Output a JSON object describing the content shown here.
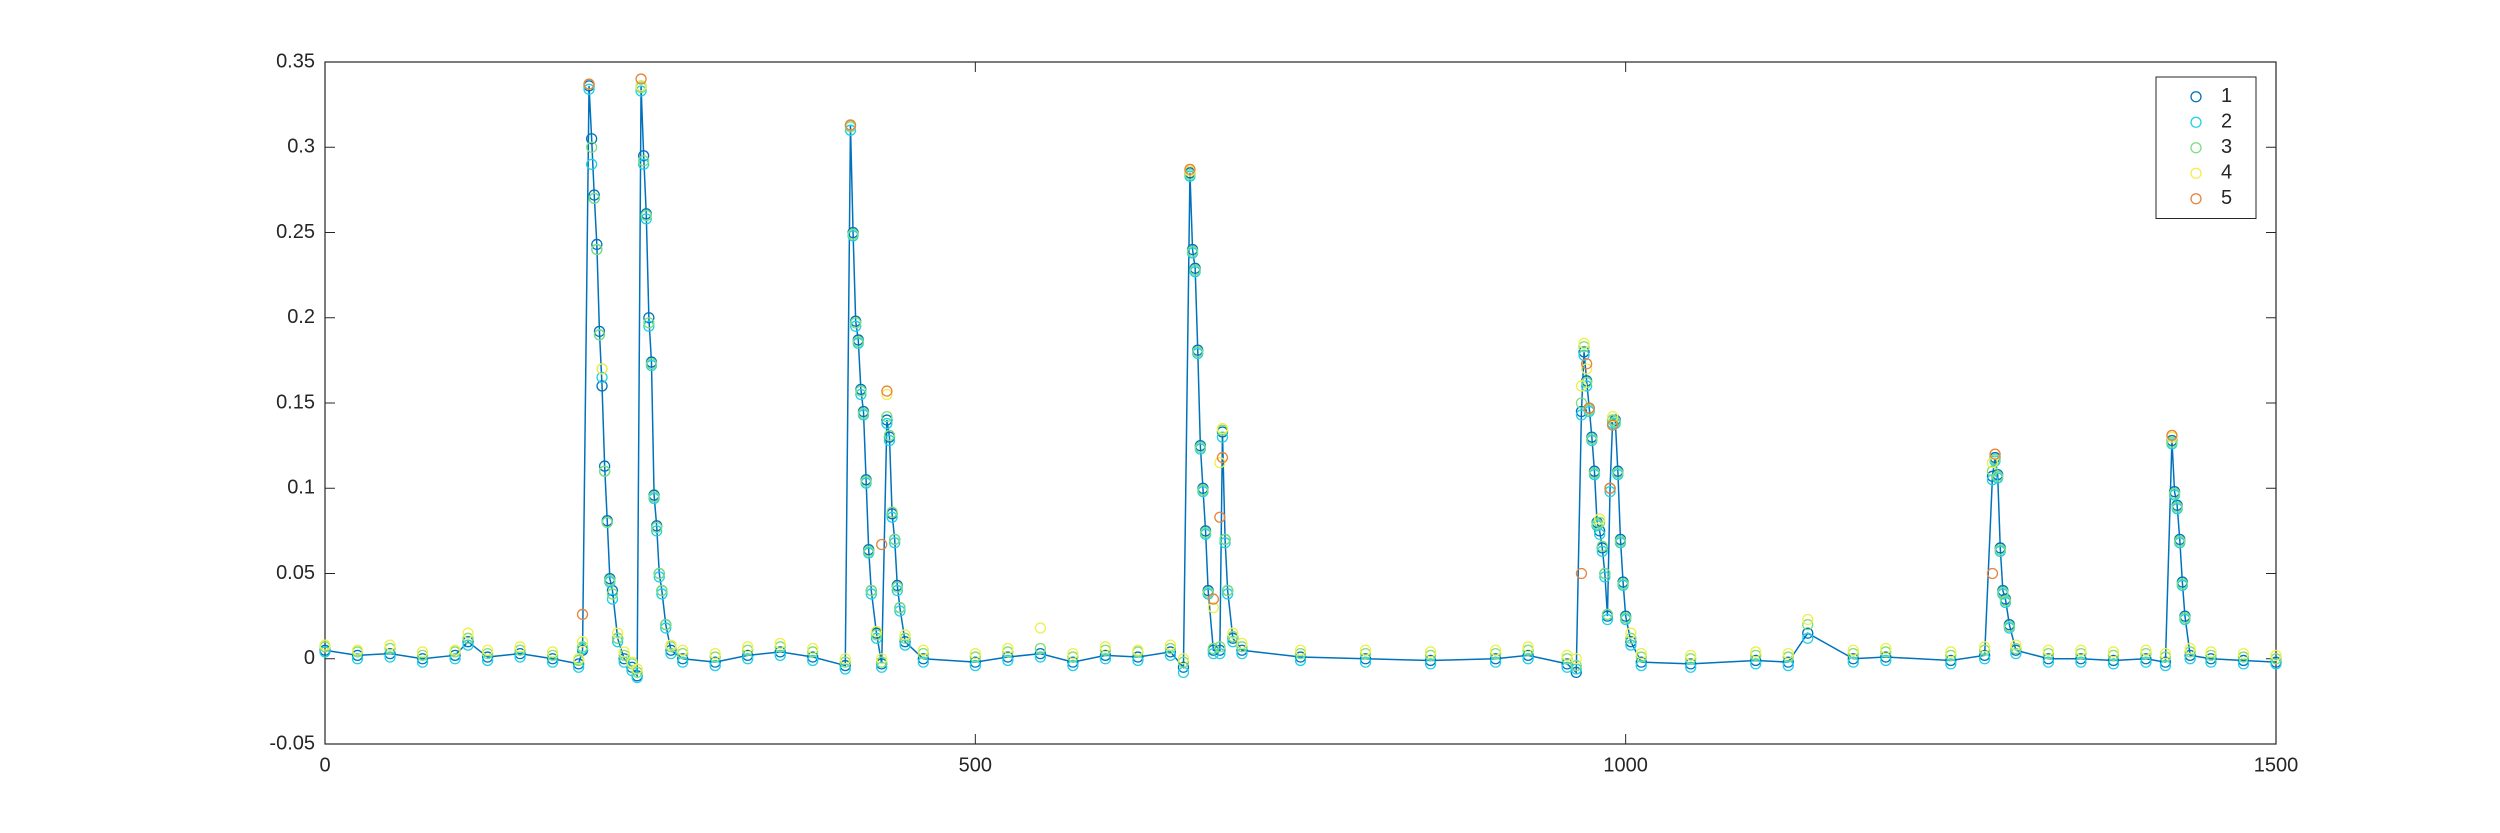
{
  "chart_data": {
    "type": "scatter",
    "x": [
      0,
      25,
      50,
      75,
      100,
      110,
      125,
      150,
      175,
      195,
      198,
      203,
      205,
      207,
      209,
      211,
      213,
      215,
      217,
      219,
      221,
      225,
      230,
      236,
      240,
      243,
      245,
      247,
      249,
      251,
      253,
      255,
      257,
      259,
      262,
      266,
      275,
      300,
      325,
      350,
      375,
      400,
      404,
      406,
      408,
      410,
      412,
      414,
      416,
      418,
      420,
      424,
      428,
      432,
      434,
      436,
      438,
      440,
      442,
      446,
      460,
      500,
      525,
      550,
      575,
      600,
      625,
      650,
      660,
      665,
      667,
      669,
      671,
      673,
      675,
      677,
      679,
      683,
      688,
      690,
      692,
      694,
      698,
      705,
      750,
      800,
      850,
      900,
      925,
      955,
      962,
      966,
      968,
      970,
      972,
      974,
      976,
      978,
      980,
      982,
      984,
      986,
      988,
      990,
      992,
      994,
      996,
      998,
      1000,
      1004,
      1012,
      1050,
      1100,
      1125,
      1140,
      1175,
      1200,
      1250,
      1276,
      1282,
      1284,
      1286,
      1288,
      1290,
      1292,
      1295,
      1300,
      1325,
      1350,
      1375,
      1400,
      1415,
      1420,
      1422,
      1424,
      1426,
      1428,
      1430,
      1434,
      1450,
      1475,
      1500
    ],
    "series": [
      {
        "name": "1",
        "color": "#0072bd",
        "line": true,
        "values": [
          0.005,
          0.002,
          0.003,
          0.0,
          0.002,
          0.01,
          0.001,
          0.003,
          0.0,
          -0.003,
          0.005,
          0.336,
          0.305,
          0.272,
          0.243,
          0.192,
          0.16,
          0.113,
          0.081,
          0.047,
          0.04,
          0.012,
          0.0,
          -0.005,
          -0.01,
          0.336,
          0.295,
          0.261,
          0.2,
          0.174,
          0.096,
          0.078,
          0.05,
          0.04,
          0.02,
          0.005,
          0.0,
          -0.002,
          0.002,
          0.004,
          0.001,
          -0.004,
          0.313,
          0.25,
          0.198,
          0.187,
          0.158,
          0.145,
          0.105,
          0.064,
          0.04,
          0.015,
          -0.003,
          0.14,
          0.13,
          0.085,
          0.07,
          0.043,
          0.03,
          0.01,
          0.0,
          -0.002,
          0.001,
          0.003,
          -0.002,
          0.002,
          0.001,
          0.004,
          -0.005,
          0.285,
          0.24,
          0.229,
          0.181,
          0.125,
          0.1,
          0.075,
          0.04,
          0.005,
          0.005,
          0.133,
          0.07,
          0.04,
          0.012,
          0.005,
          0.001,
          0.0,
          -0.001,
          0.0,
          0.002,
          -0.003,
          -0.008,
          0.145,
          0.18,
          0.163,
          0.147,
          0.13,
          0.11,
          0.08,
          0.075,
          0.065,
          0.05,
          0.025,
          0.1,
          0.14,
          0.14,
          0.11,
          0.07,
          0.045,
          0.025,
          0.01,
          -0.002,
          -0.003,
          -0.001,
          -0.002,
          0.015,
          0.0,
          0.001,
          -0.001,
          0.002,
          0.107,
          0.118,
          0.108,
          0.065,
          0.04,
          0.035,
          0.02,
          0.005,
          0.0,
          0.0,
          -0.001,
          0.0,
          -0.002,
          0.128,
          0.098,
          0.09,
          0.07,
          0.045,
          0.025,
          0.002,
          0.0,
          -0.001,
          -0.002
        ]
      },
      {
        "name": "2",
        "color": "#1fd0e6",
        "line": false,
        "values": [
          0.004,
          0.0,
          0.001,
          -0.002,
          0.0,
          0.008,
          -0.001,
          0.001,
          -0.002,
          -0.005,
          0.006,
          0.334,
          0.29,
          0.27,
          0.24,
          0.19,
          0.165,
          0.11,
          0.08,
          0.045,
          0.035,
          0.01,
          -0.002,
          -0.007,
          -0.011,
          0.333,
          0.29,
          0.258,
          0.195,
          0.172,
          0.094,
          0.075,
          0.048,
          0.038,
          0.018,
          0.003,
          -0.002,
          -0.004,
          0.0,
          0.002,
          -0.001,
          -0.006,
          0.31,
          0.248,
          0.195,
          0.185,
          0.155,
          0.143,
          0.103,
          0.062,
          0.038,
          0.012,
          -0.005,
          0.138,
          0.128,
          0.083,
          0.068,
          0.04,
          0.028,
          0.008,
          -0.002,
          -0.004,
          -0.001,
          0.001,
          -0.004,
          0.0,
          -0.001,
          0.002,
          -0.008,
          0.283,
          0.238,
          0.227,
          0.179,
          0.123,
          0.098,
          0.073,
          0.038,
          0.003,
          0.003,
          0.13,
          0.068,
          0.038,
          0.01,
          0.003,
          -0.001,
          -0.002,
          -0.003,
          -0.002,
          0.0,
          -0.005,
          -0.006,
          0.143,
          0.178,
          0.16,
          0.145,
          0.128,
          0.108,
          0.078,
          0.073,
          0.063,
          0.048,
          0.023,
          0.098,
          0.138,
          0.138,
          0.108,
          0.068,
          0.043,
          0.023,
          0.008,
          -0.004,
          -0.005,
          -0.003,
          -0.004,
          0.012,
          -0.002,
          -0.001,
          -0.003,
          0.0,
          0.105,
          0.116,
          0.106,
          0.063,
          0.038,
          0.033,
          0.018,
          0.003,
          -0.002,
          -0.002,
          -0.003,
          -0.002,
          -0.004,
          0.126,
          0.096,
          0.088,
          0.068,
          0.043,
          0.023,
          0.0,
          -0.002,
          -0.003,
          -0.003
        ]
      },
      {
        "name": "3",
        "color": "#7ddf7a",
        "line": false,
        "values": [
          0.007,
          0.004,
          0.006,
          0.002,
          0.004,
          0.012,
          0.003,
          0.005,
          0.002,
          -0.001,
          0.007,
          0.337,
          0.3,
          0.27,
          0.24,
          0.19,
          0.17,
          0.11,
          0.08,
          0.046,
          0.038,
          0.012,
          0.002,
          -0.003,
          -0.008,
          0.335,
          0.292,
          0.26,
          0.197,
          0.173,
          0.095,
          0.077,
          0.05,
          0.04,
          0.02,
          0.007,
          0.003,
          0.001,
          0.005,
          0.007,
          0.004,
          -0.002,
          0.312,
          0.249,
          0.197,
          0.186,
          0.157,
          0.144,
          0.104,
          0.063,
          0.04,
          0.014,
          -0.002,
          0.142,
          0.131,
          0.086,
          0.07,
          0.042,
          0.03,
          0.012,
          0.003,
          0.001,
          0.004,
          0.006,
          0.001,
          0.005,
          0.004,
          0.006,
          -0.002,
          0.284,
          0.239,
          0.228,
          0.18,
          0.124,
          0.099,
          0.074,
          0.039,
          0.006,
          0.007,
          0.134,
          0.07,
          0.04,
          0.013,
          0.007,
          0.003,
          0.003,
          0.002,
          0.003,
          0.005,
          0.0,
          -0.004,
          0.15,
          0.183,
          0.162,
          0.146,
          0.129,
          0.109,
          0.079,
          0.08,
          0.066,
          0.05,
          0.026,
          0.1,
          0.14,
          0.139,
          0.109,
          0.069,
          0.044,
          0.024,
          0.012,
          0.001,
          0.0,
          0.002,
          0.001,
          0.02,
          0.003,
          0.004,
          0.002,
          0.005,
          0.11,
          0.117,
          0.107,
          0.064,
          0.039,
          0.034,
          0.019,
          0.006,
          0.003,
          0.003,
          0.002,
          0.003,
          0.001,
          0.127,
          0.097,
          0.089,
          0.069,
          0.044,
          0.024,
          0.004,
          0.002,
          0.001,
          0.0
        ]
      },
      {
        "name": "4",
        "color": "#f0ef4a",
        "line": false,
        "values": [
          0.008,
          0.005,
          0.008,
          0.004,
          0.005,
          0.015,
          0.005,
          0.007,
          0.004,
          0.0,
          0.01,
          0.337,
          null,
          null,
          null,
          null,
          0.17,
          null,
          null,
          null,
          null,
          0.015,
          0.004,
          -0.002,
          -0.006,
          0.336,
          null,
          null,
          null,
          null,
          null,
          null,
          null,
          null,
          null,
          0.008,
          0.005,
          0.003,
          0.007,
          0.009,
          0.006,
          0.0,
          0.313,
          null,
          null,
          null,
          null,
          null,
          null,
          null,
          null,
          0.016,
          0.0,
          0.155,
          null,
          null,
          null,
          null,
          null,
          0.014,
          0.005,
          0.003,
          0.006,
          0.018,
          0.003,
          0.007,
          0.005,
          0.008,
          0.0,
          0.286,
          null,
          null,
          null,
          null,
          null,
          null,
          null,
          0.03,
          0.115,
          0.135,
          null,
          null,
          0.015,
          0.009,
          0.005,
          0.005,
          0.004,
          0.005,
          0.007,
          0.002,
          0.0,
          0.16,
          0.185,
          0.17,
          null,
          null,
          null,
          null,
          0.082,
          null,
          null,
          null,
          null,
          0.142,
          null,
          null,
          null,
          null,
          null,
          0.015,
          0.003,
          0.002,
          0.004,
          0.003,
          0.023,
          0.005,
          0.006,
          0.004,
          0.007,
          0.115,
          0.12,
          null,
          null,
          null,
          null,
          null,
          0.008,
          0.005,
          0.005,
          0.004,
          0.005,
          0.003,
          0.13,
          null,
          null,
          null,
          null,
          null,
          0.006,
          0.004,
          0.003,
          0.002
        ]
      },
      {
        "name": "5",
        "color": "#e8823c",
        "line": false,
        "values": [
          null,
          null,
          null,
          null,
          null,
          null,
          null,
          null,
          null,
          null,
          0.026,
          0.337,
          null,
          null,
          null,
          null,
          null,
          null,
          null,
          null,
          null,
          null,
          null,
          null,
          null,
          0.34,
          null,
          null,
          null,
          null,
          null,
          null,
          null,
          null,
          null,
          null,
          null,
          null,
          null,
          null,
          null,
          null,
          0.313,
          null,
          null,
          null,
          null,
          null,
          null,
          null,
          null,
          null,
          0.067,
          0.157,
          null,
          null,
          null,
          null,
          null,
          null,
          null,
          null,
          null,
          null,
          null,
          null,
          null,
          null,
          null,
          0.287,
          null,
          null,
          null,
          null,
          null,
          null,
          null,
          0.035,
          0.083,
          0.118,
          null,
          null,
          null,
          null,
          null,
          null,
          null,
          null,
          null,
          null,
          null,
          0.05,
          null,
          0.173,
          0.147,
          null,
          null,
          null,
          null,
          null,
          null,
          null,
          0.1,
          0.137,
          null,
          null,
          null,
          null,
          null,
          null,
          null,
          null,
          null,
          null,
          null,
          null,
          null,
          null,
          null,
          0.05,
          0.12,
          null,
          null,
          null,
          null,
          null,
          null,
          null,
          null,
          null,
          null,
          null,
          0.131,
          null,
          null,
          null,
          null,
          null,
          null,
          null,
          null,
          null
        ]
      }
    ],
    "xlim": [
      0,
      1500
    ],
    "xticks": [
      0,
      500,
      1000,
      1500
    ],
    "ylim": [
      -0.05,
      0.35
    ],
    "yticks": [
      -0.05,
      0,
      0.05,
      0.1,
      0.15,
      0.2,
      0.25,
      0.3,
      0.35
    ],
    "legend": "northeast",
    "box": true
  }
}
